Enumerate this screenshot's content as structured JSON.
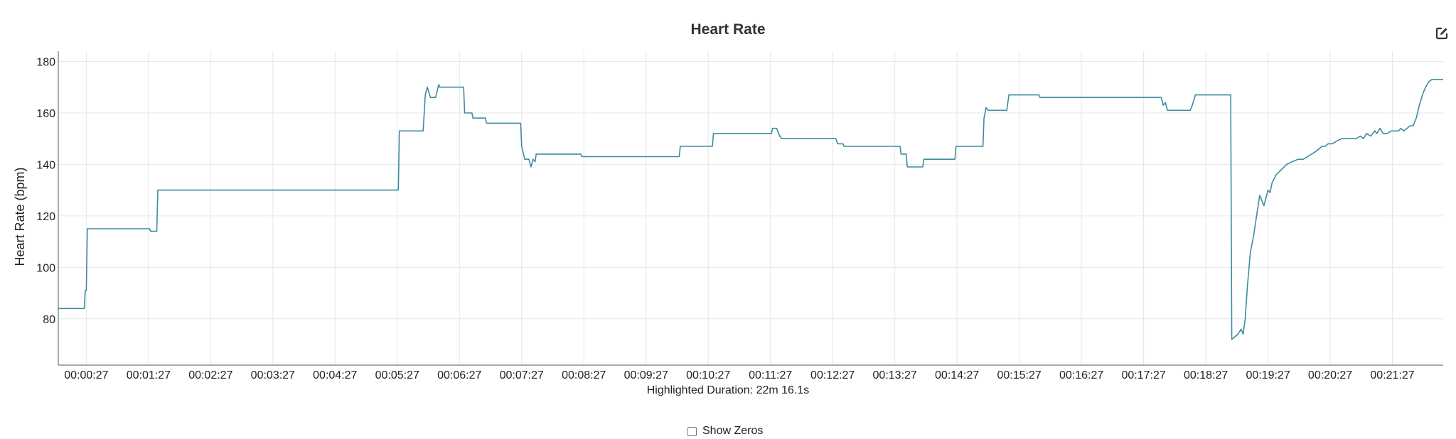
{
  "chart_data": {
    "type": "line",
    "title": "Heart Rate",
    "ylabel": "Heart Rate (bpm)",
    "xlabel": "Highlighted Duration: 22m 16.1s",
    "ylim": [
      62,
      184
    ],
    "yticks": [
      80,
      100,
      120,
      140,
      160,
      180
    ],
    "x_unit": "seconds",
    "xlim": [
      0,
      1336
    ],
    "xticks": [
      "00:00:27",
      "00:01:27",
      "00:02:27",
      "00:03:27",
      "00:04:27",
      "00:05:27",
      "00:06:27",
      "00:07:27",
      "00:08:27",
      "00:09:27",
      "00:10:27",
      "00:11:27",
      "00:12:27",
      "00:13:27",
      "00:14:27",
      "00:15:27",
      "00:16:27",
      "00:17:27",
      "00:18:27",
      "00:19:27",
      "00:20:27",
      "00:21:27"
    ],
    "grid": true,
    "series": [
      {
        "color": "#3d8ca1",
        "points": [
          [
            0,
            84
          ],
          [
            25,
            84
          ],
          [
            26,
            91
          ],
          [
            27,
            91
          ],
          [
            28,
            115
          ],
          [
            88,
            115
          ],
          [
            89,
            114
          ],
          [
            95,
            114
          ],
          [
            96,
            130
          ],
          [
            328,
            130
          ],
          [
            329,
            153
          ],
          [
            352,
            153
          ],
          [
            354,
            167
          ],
          [
            356,
            170
          ],
          [
            359,
            166
          ],
          [
            364,
            166
          ],
          [
            367,
            171
          ],
          [
            368,
            170
          ],
          [
            391,
            170
          ],
          [
            392,
            160
          ],
          [
            399,
            160
          ],
          [
            400,
            158
          ],
          [
            412,
            158
          ],
          [
            413,
            156
          ],
          [
            446,
            156
          ],
          [
            447,
            147
          ],
          [
            450,
            142
          ],
          [
            454,
            142
          ],
          [
            456,
            139
          ],
          [
            458,
            142
          ],
          [
            460,
            141
          ],
          [
            461,
            144
          ],
          [
            504,
            144
          ],
          [
            505,
            143
          ],
          [
            599,
            143
          ],
          [
            600,
            147
          ],
          [
            631,
            147
          ],
          [
            632,
            152
          ],
          [
            688,
            152
          ],
          [
            689,
            154
          ],
          [
            693,
            154
          ],
          [
            696,
            151
          ],
          [
            698,
            150
          ],
          [
            750,
            150
          ],
          [
            752,
            148
          ],
          [
            757,
            148
          ],
          [
            758,
            147
          ],
          [
            812,
            147
          ],
          [
            813,
            144
          ],
          [
            818,
            144
          ],
          [
            819,
            139
          ],
          [
            834,
            139
          ],
          [
            835,
            142
          ],
          [
            865,
            142
          ],
          [
            866,
            147
          ],
          [
            892,
            147
          ],
          [
            893,
            158
          ],
          [
            895,
            162
          ],
          [
            897,
            161
          ],
          [
            915,
            161
          ],
          [
            917,
            167
          ],
          [
            946,
            167
          ],
          [
            947,
            166
          ],
          [
            1064,
            166
          ],
          [
            1066,
            163
          ],
          [
            1068,
            164
          ],
          [
            1070,
            161
          ],
          [
            1092,
            161
          ],
          [
            1094,
            163
          ],
          [
            1097,
            167
          ],
          [
            1131,
            167
          ],
          [
            1132,
            72
          ],
          [
            1135,
            73
          ],
          [
            1138,
            74
          ],
          [
            1141,
            76
          ],
          [
            1143,
            74
          ],
          [
            1145,
            80
          ],
          [
            1147,
            92
          ],
          [
            1150,
            106
          ],
          [
            1153,
            112
          ],
          [
            1156,
            120
          ],
          [
            1159,
            128
          ],
          [
            1161,
            126
          ],
          [
            1163,
            124
          ],
          [
            1165,
            127
          ],
          [
            1167,
            130
          ],
          [
            1169,
            129
          ],
          [
            1171,
            133
          ],
          [
            1175,
            136
          ],
          [
            1180,
            138
          ],
          [
            1185,
            140
          ],
          [
            1190,
            141
          ],
          [
            1196,
            142
          ],
          [
            1201,
            142
          ],
          [
            1205,
            143
          ],
          [
            1209,
            144
          ],
          [
            1213,
            145
          ],
          [
            1216,
            146
          ],
          [
            1219,
            147
          ],
          [
            1222,
            147
          ],
          [
            1225,
            148
          ],
          [
            1229,
            148
          ],
          [
            1233,
            149
          ],
          [
            1238,
            150
          ],
          [
            1243,
            150
          ],
          [
            1248,
            150
          ],
          [
            1252,
            150
          ],
          [
            1256,
            151
          ],
          [
            1259,
            150
          ],
          [
            1262,
            152
          ],
          [
            1266,
            151
          ],
          [
            1270,
            153
          ],
          [
            1272,
            152
          ],
          [
            1275,
            154
          ],
          [
            1278,
            152
          ],
          [
            1282,
            152
          ],
          [
            1286,
            153
          ],
          [
            1290,
            153
          ],
          [
            1293,
            153
          ],
          [
            1295,
            154
          ],
          [
            1298,
            153
          ],
          [
            1301,
            154
          ],
          [
            1304,
            155
          ],
          [
            1307,
            155
          ],
          [
            1310,
            158
          ],
          [
            1313,
            163
          ],
          [
            1316,
            167
          ],
          [
            1319,
            170
          ],
          [
            1322,
            172
          ],
          [
            1325,
            173
          ],
          [
            1336,
            173
          ]
        ]
      }
    ]
  },
  "controls": {
    "show_zeros_label": "Show Zeros",
    "show_zeros_checked": false
  },
  "icons": {
    "edit": "edit-icon"
  }
}
